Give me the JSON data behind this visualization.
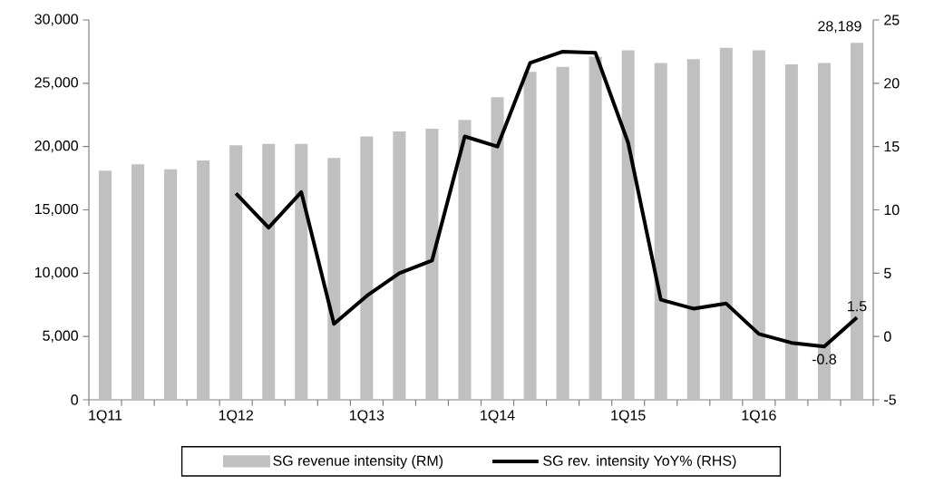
{
  "chart_data": {
    "type": "bar",
    "categories": [
      "1Q11",
      null,
      null,
      null,
      "1Q12",
      null,
      null,
      null,
      "1Q13",
      null,
      null,
      null,
      "1Q14",
      null,
      null,
      null,
      "1Q15",
      null,
      null,
      null,
      "1Q16",
      null,
      null,
      null
    ],
    "series": [
      {
        "name": "SG revenue intensity (RM)",
        "color": "#c0c0c0",
        "values": [
          18100,
          18600,
          18200,
          18900,
          20100,
          20200,
          20200,
          19100,
          20800,
          21200,
          21400,
          22100,
          23900,
          25900,
          26300,
          27100,
          27600,
          26600,
          26900,
          27800,
          27600,
          26500,
          26600,
          28189
        ],
        "value_labels": [
          null,
          null,
          null,
          null,
          null,
          null,
          null,
          null,
          null,
          null,
          null,
          null,
          null,
          null,
          null,
          null,
          null,
          null,
          null,
          null,
          null,
          null,
          null,
          "28,189"
        ]
      },
      {
        "name": "SG rev. intensity YoY% (RHS)",
        "type": "line",
        "axis": "y2",
        "color": "#000000",
        "values": [
          null,
          null,
          null,
          null,
          11.3,
          8.6,
          11.4,
          1.0,
          3.2,
          5.0,
          6.0,
          15.8,
          15.0,
          21.6,
          22.5,
          22.4,
          15.3,
          2.9,
          2.2,
          2.6,
          0.2,
          -0.5,
          -0.8,
          1.5
        ],
        "value_labels": [
          null,
          null,
          null,
          null,
          null,
          null,
          null,
          null,
          null,
          null,
          null,
          null,
          null,
          null,
          null,
          null,
          null,
          null,
          null,
          null,
          null,
          null,
          "-0.8",
          "1.5"
        ]
      }
    ],
    "ylim": [
      0,
      30000
    ],
    "yticks": [
      0,
      {
        "value": 5000,
        "label": "5,000"
      },
      {
        "value": 10000,
        "label": "10,000"
      },
      {
        "value": 15000,
        "label": "15,000"
      },
      {
        "value": 20000,
        "label": "20,000"
      },
      {
        "value": 25000,
        "label": "25,000"
      },
      {
        "value": 30000,
        "label": "30,000"
      }
    ],
    "y2lim": [
      -5,
      25
    ],
    "y2ticks": [
      -5,
      0,
      5,
      10,
      15,
      20,
      25
    ],
    "legend": "bottom"
  }
}
